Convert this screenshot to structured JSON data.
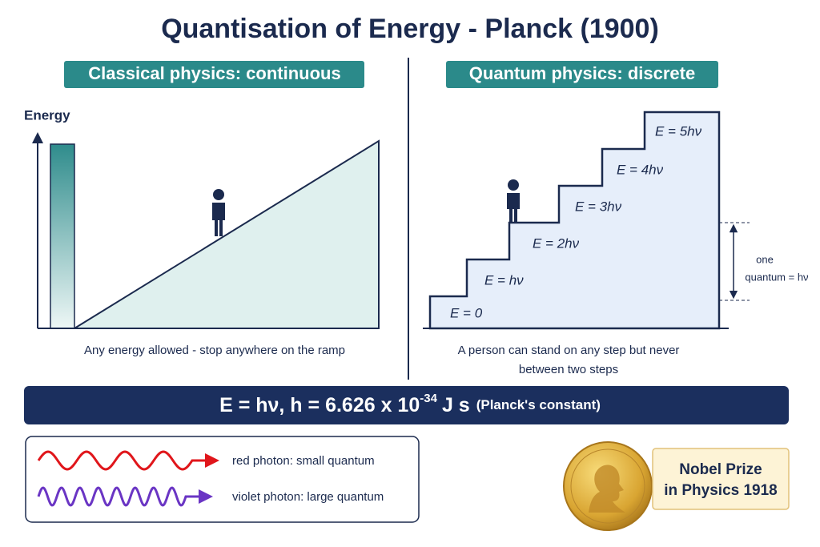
{
  "title": "Quantisation of Energy - Planck (1900)",
  "classical": {
    "heading": "Classical physics: continuous",
    "axis_label": "Energy",
    "caption": "Any energy allowed - stop anywhere on the ramp"
  },
  "quantum": {
    "heading": "Quantum physics: discrete",
    "steps": [
      "E = 0",
      "E = hν",
      "E = 2hν",
      "E = 3hν",
      "E = 4hν",
      "E = 5hν"
    ],
    "quantum_label": [
      "one",
      "quantum = hν"
    ],
    "caption": [
      "A person can stand on any step but never",
      "between two steps"
    ]
  },
  "formula": {
    "main": "E = hν, h = 6.626 x 10",
    "exponent": "-34",
    "unit": "J s",
    "note": "(Planck's constant)"
  },
  "photons": [
    "red photon: small quantum",
    "violet photon: large quantum"
  ],
  "nobel": [
    "Nobel Prize",
    "in Physics 1918"
  ]
}
